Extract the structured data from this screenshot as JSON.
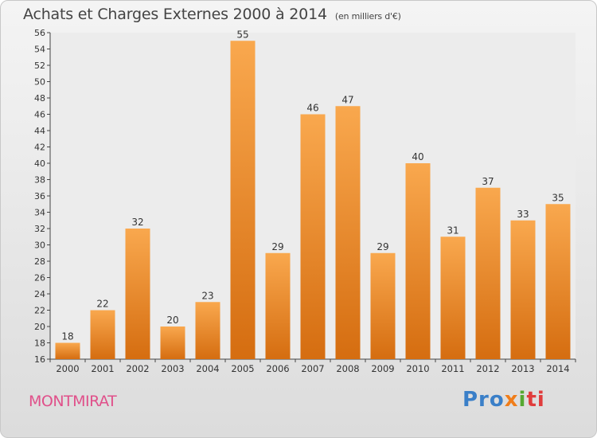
{
  "header": {
    "title": "Achats et Charges Externes 2000 à 2014",
    "unit": "(en milliers d'€)"
  },
  "footer": {
    "town": "MONTMIRAT",
    "logo_parts": [
      "Pro",
      "x",
      "i",
      "ti"
    ]
  },
  "colors": {
    "bar_light": "#f9a84e",
    "bar_dark": "#d56d10",
    "town_text": "#e0508a"
  },
  "chart_data": {
    "type": "bar",
    "title": "Achats et Charges Externes 2000 à 2014",
    "subtitle": "(en milliers d'€)",
    "categories": [
      "2000",
      "2001",
      "2002",
      "2003",
      "2004",
      "2005",
      "2006",
      "2007",
      "2008",
      "2009",
      "2010",
      "2011",
      "2012",
      "2013",
      "2014"
    ],
    "values": [
      18,
      22,
      32,
      20,
      23,
      55,
      29,
      46,
      47,
      29,
      40,
      31,
      37,
      33,
      35
    ],
    "ylim": [
      16,
      56
    ],
    "yticks": [
      16,
      18,
      20,
      22,
      24,
      26,
      28,
      30,
      32,
      34,
      36,
      38,
      40,
      42,
      44,
      46,
      48,
      50,
      52,
      54,
      56
    ],
    "grid": false,
    "data_labels": true
  }
}
